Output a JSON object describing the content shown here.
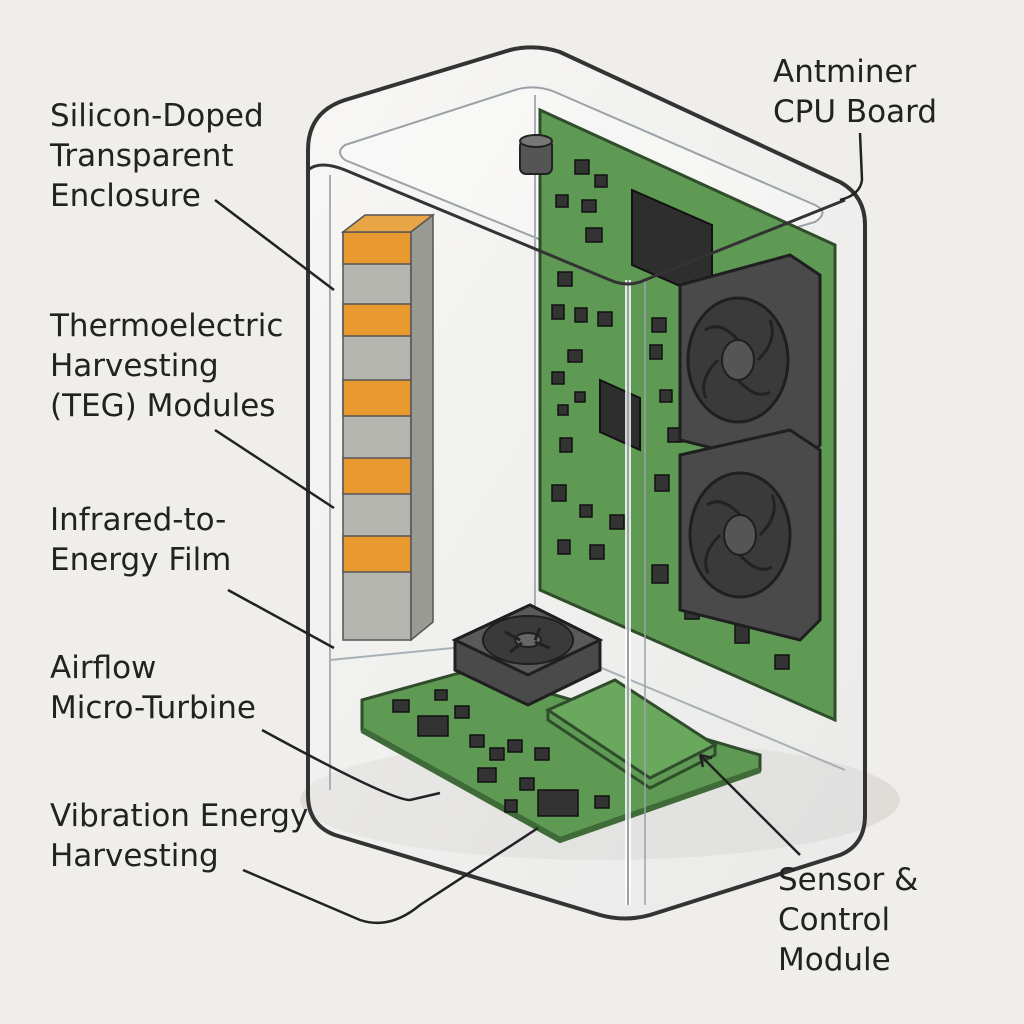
{
  "labels": {
    "enclosure": [
      "Silicon-Doped",
      "Transparent",
      "Enclosure"
    ],
    "teg": [
      "Thermoelectric",
      "Harvesting",
      "(TEG) Modules"
    ],
    "ir_film": [
      "Infrared-to-",
      "Energy Film"
    ],
    "turbine": [
      "Airflow",
      "Micro-Turbine"
    ],
    "vibration": [
      "Vibration Energy",
      "Harvesting"
    ],
    "cpu_board": [
      "Antminer",
      "CPU Board"
    ],
    "sensor": [
      "Sensor &",
      "Control",
      "Module"
    ]
  },
  "colors": {
    "background": "#f0eeea",
    "pcb_green": "#5f9a55",
    "teg_orange": "#e89a30",
    "teg_gray": "#b5b5b0",
    "fan_dark": "#444444",
    "enclosure_outline": "#333333"
  }
}
